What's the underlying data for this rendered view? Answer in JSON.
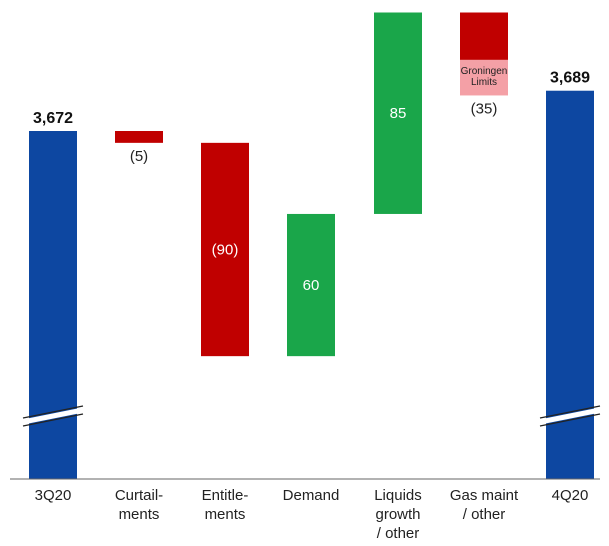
{
  "chart_data": {
    "type": "bar",
    "subtype": "waterfall",
    "title": "",
    "xlabel": "",
    "ylabel": "",
    "axis_break": true,
    "grid": false,
    "legend": "none",
    "categories": [
      [
        "3Q20"
      ],
      [
        "Curtail-",
        "ments"
      ],
      [
        "Entitle-",
        "ments"
      ],
      [
        "Demand"
      ],
      [
        "Liquids",
        "growth",
        "/ other"
      ],
      [
        "Gas maint",
        "/ other"
      ],
      [
        "4Q20"
      ]
    ],
    "steps": [
      {
        "kind": "total",
        "value": 3672,
        "label": "3,672",
        "color": "#0d47a1"
      },
      {
        "kind": "delta",
        "value": -5,
        "label": "(5)",
        "label_pos": "below",
        "color": "#c00000"
      },
      {
        "kind": "delta",
        "value": -90,
        "label": "(90)",
        "label_pos": "inside",
        "color": "#c00000"
      },
      {
        "kind": "delta",
        "value": 60,
        "label": "60",
        "label_pos": "inside",
        "color": "#1aa64a"
      },
      {
        "kind": "delta",
        "value": 85,
        "label": "85",
        "label_pos": "inside",
        "color": "#1aa64a"
      },
      {
        "kind": "delta",
        "value": -35,
        "label": "(35)",
        "label_pos": "below",
        "color": "#c00000",
        "segments": [
          {
            "value": -20,
            "color": "#c00000",
            "text": []
          },
          {
            "value": -15,
            "color": "#f4a0a6",
            "text": [
              "Groningen",
              "Limits"
            ]
          }
        ]
      },
      {
        "kind": "total",
        "value": 3689,
        "label": "3,689",
        "color": "#0d47a1"
      }
    ],
    "ylim": [
      3600,
      3750
    ]
  }
}
